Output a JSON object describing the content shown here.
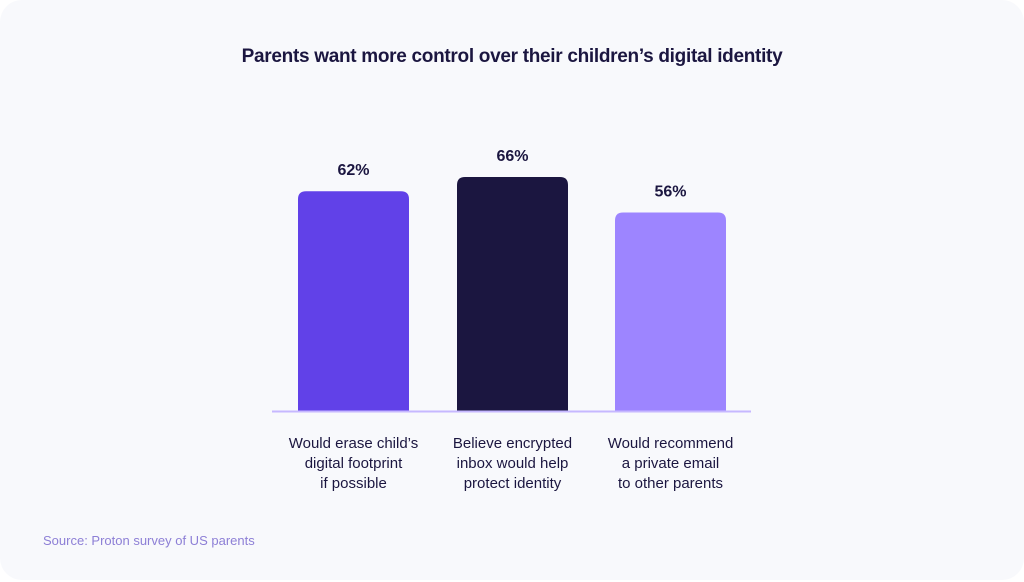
{
  "chart_data": {
    "type": "bar",
    "title": "Parents want more control over their children’s digital identity",
    "categories": [
      [
        "Would erase child’s",
        "digital footprint",
        "if possible"
      ],
      [
        "Believe encrypted",
        "inbox would help",
        "protect identity"
      ],
      [
        "Would recommend",
        "a private email",
        "to other parents"
      ]
    ],
    "values": [
      62,
      66,
      56
    ],
    "data_labels": [
      "62%",
      "66%",
      "56%"
    ],
    "colors": [
      "#6141e8",
      "#1b1640",
      "#9d85ff"
    ],
    "axis_color": "#c6b8ff",
    "ylim": [
      0,
      100
    ],
    "grid": false,
    "source": "Source: Proton survey of US parents"
  }
}
